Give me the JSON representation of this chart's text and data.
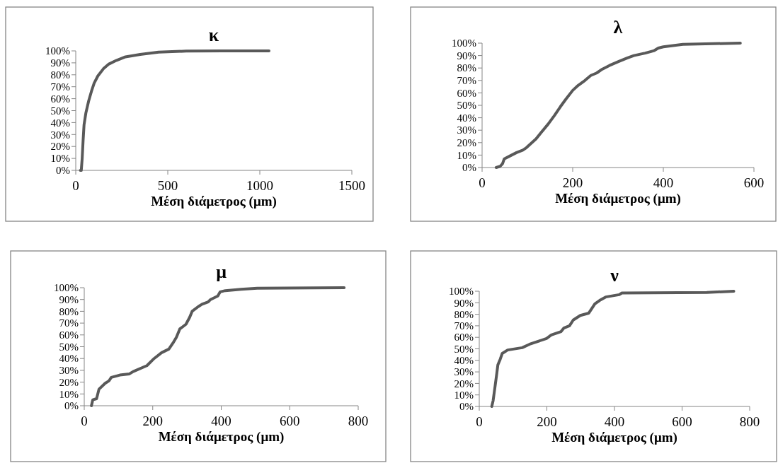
{
  "chart_data": [
    {
      "type": "line",
      "title": "κ",
      "xlabel": "Μέση διάμετρος (μm)",
      "xlim": [
        0,
        1500
      ],
      "xticks": [
        0,
        500,
        1000,
        1500
      ],
      "ylim": [
        0,
        100
      ],
      "yticks": [
        {
          "value": 0,
          "label": "0%"
        },
        {
          "value": 10,
          "label": "10%"
        },
        {
          "value": 20,
          "label": "20%"
        },
        {
          "value": 30,
          "label": "30%"
        },
        {
          "value": 40,
          "label": "40%"
        },
        {
          "value": 50,
          "label": "50%"
        },
        {
          "value": 60,
          "label": "60%"
        },
        {
          "value": 70,
          "label": "70%"
        },
        {
          "value": 80,
          "label": "80%"
        },
        {
          "value": 90,
          "label": "90%"
        },
        {
          "value": 100,
          "label": "100%"
        }
      ],
      "series": [
        {
          "color": "#595959",
          "x": [
            25,
            30,
            35,
            40,
            45,
            55,
            70,
            85,
            100,
            120,
            150,
            180,
            220,
            270,
            350,
            450,
            600,
            800,
            1050
          ],
          "values": [
            0,
            0,
            10,
            25,
            38,
            48,
            58,
            66,
            73,
            79,
            85,
            89,
            92,
            95,
            97,
            99,
            99.8,
            100,
            100
          ]
        }
      ]
    },
    {
      "type": "line",
      "title": "λ",
      "xlabel": "Μέση διάμετρος (μm)",
      "xlim": [
        0,
        600
      ],
      "xticks": [
        0,
        200,
        400,
        600
      ],
      "ylim": [
        0,
        100
      ],
      "yticks": [
        {
          "value": 0,
          "label": "0%"
        },
        {
          "value": 10,
          "label": "10%"
        },
        {
          "value": 20,
          "label": "20%"
        },
        {
          "value": 30,
          "label": "30%"
        },
        {
          "value": 40,
          "label": "40%"
        },
        {
          "value": 50,
          "label": "50%"
        },
        {
          "value": 60,
          "label": "60%"
        },
        {
          "value": 70,
          "label": "70%"
        },
        {
          "value": 80,
          "label": "80%"
        },
        {
          "value": 90,
          "label": "90%"
        },
        {
          "value": 100,
          "label": "100%"
        }
      ],
      "series": [
        {
          "color": "#595959",
          "x": [
            31,
            40,
            45,
            49,
            60,
            76,
            90,
            98,
            110,
            119,
            130,
            146,
            160,
            173,
            185,
            200,
            212,
            227,
            240,
            253,
            265,
            281,
            300,
            320,
            335,
            360,
            380,
            389,
            400,
            443,
            570
          ],
          "values": [
            0,
            1,
            3,
            7,
            9,
            12,
            14,
            16,
            20,
            23,
            28,
            35,
            42,
            49,
            55,
            62,
            66,
            70,
            74,
            76,
            79,
            82,
            85,
            88,
            90,
            92,
            94,
            96,
            97,
            99,
            100
          ]
        }
      ]
    },
    {
      "type": "line",
      "title": "μ",
      "xlabel": "Μέση διάμετρος (μm)",
      "xlim": [
        0,
        800
      ],
      "xticks": [
        0,
        200,
        400,
        600,
        800
      ],
      "ylim": [
        0,
        100
      ],
      "yticks": [
        {
          "value": 0,
          "label": "0%"
        },
        {
          "value": 10,
          "label": "10%"
        },
        {
          "value": 20,
          "label": "20%"
        },
        {
          "value": 30,
          "label": "30%"
        },
        {
          "value": 40,
          "label": "40%"
        },
        {
          "value": 50,
          "label": "50%"
        },
        {
          "value": 60,
          "label": "60%"
        },
        {
          "value": 70,
          "label": "70%"
        },
        {
          "value": 80,
          "label": "80%"
        },
        {
          "value": 90,
          "label": "90%"
        },
        {
          "value": 100,
          "label": "100%"
        }
      ],
      "series": [
        {
          "color": "#595959",
          "x": [
            21,
            25,
            36,
            43,
            61,
            72,
            79,
            104,
            132,
            143,
            183,
            204,
            226,
            247,
            261,
            269,
            279,
            297,
            308,
            315,
            333,
            344,
            362,
            369,
            390,
            397,
            412,
            458,
            505,
            759
          ],
          "values": [
            0,
            5,
            6,
            14,
            19,
            21,
            24,
            26,
            27,
            29,
            34,
            40,
            45,
            48,
            54,
            58,
            65,
            69,
            75,
            80,
            84,
            86,
            88,
            90,
            93,
            96.5,
            97.5,
            98.6,
            99.6,
            100
          ]
        }
      ]
    },
    {
      "type": "line",
      "title": "ν",
      "xlabel": "Μέση διάμετρος (μm)",
      "xlim": [
        0,
        800
      ],
      "xticks": [
        0,
        200,
        400,
        600,
        800
      ],
      "ylim": [
        0,
        100
      ],
      "yticks": [
        {
          "value": 0,
          "label": "0%"
        },
        {
          "value": 10,
          "label": "10%"
        },
        {
          "value": 20,
          "label": "20%"
        },
        {
          "value": 30,
          "label": "30%"
        },
        {
          "value": 40,
          "label": "40%"
        },
        {
          "value": 50,
          "label": "50%"
        },
        {
          "value": 60,
          "label": "60%"
        },
        {
          "value": 70,
          "label": "70%"
        },
        {
          "value": 80,
          "label": "80%"
        },
        {
          "value": 90,
          "label": "90%"
        },
        {
          "value": 100,
          "label": "100%"
        }
      ],
      "series": [
        {
          "color": "#595959",
          "x": [
            37,
            41,
            47,
            52,
            55,
            62,
            68,
            84,
            127,
            149,
            199,
            213,
            242,
            250,
            267,
            278,
            299,
            324,
            342,
            356,
            374,
            414,
            422,
            673,
            753
          ],
          "values": [
            0,
            5,
            18,
            29,
            36,
            41,
            46,
            49,
            51,
            54,
            59,
            62,
            65,
            68,
            70,
            75,
            79,
            81,
            89,
            92,
            95,
            97,
            98.5,
            99,
            100
          ]
        }
      ]
    }
  ]
}
